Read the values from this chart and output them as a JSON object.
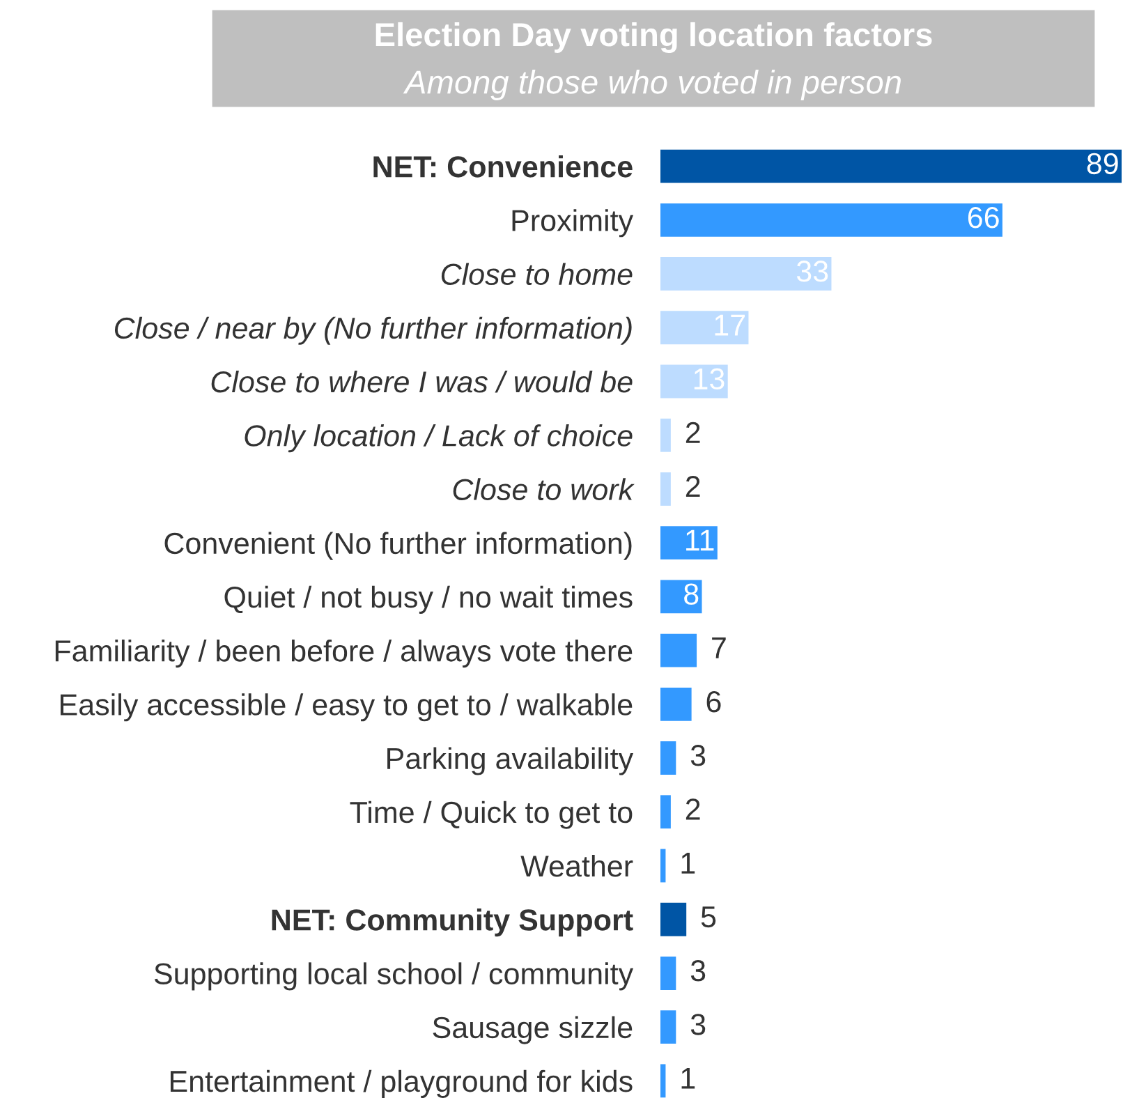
{
  "chart_data": {
    "type": "bar",
    "orientation": "horizontal",
    "title": "Election Day voting location factors",
    "subtitle": "Among those who voted in person",
    "categories": [
      "NET: Convenience",
      "Proximity",
      "Close to home",
      "Close / near by (No further information)",
      "Close to where I was / would be",
      "Only location / Lack of choice",
      "Close to work",
      "Convenient (No further information)",
      "Quiet / not busy / no wait times",
      "Familiarity / been before / always vote there",
      "Easily accessible / easy to get to / walkable",
      "Parking availability",
      "Time / Quick to get to",
      "Weather",
      "NET: Community Support",
      "Supporting local school / community",
      "Sausage sizzle",
      "Entertainment / playground for kids"
    ],
    "values": [
      89,
      66,
      33,
      17,
      13,
      2,
      2,
      11,
      8,
      7,
      6,
      3,
      2,
      1,
      5,
      3,
      3,
      1
    ],
    "colors": [
      "#0055a5",
      "#3399ff",
      "#bddcff",
      "#bddcff",
      "#bddcff",
      "#bddcff",
      "#bddcff",
      "#3399ff",
      "#3399ff",
      "#3399ff",
      "#3399ff",
      "#3399ff",
      "#3399ff",
      "#3399ff",
      "#0055a5",
      "#3399ff",
      "#3399ff",
      "#3399ff"
    ],
    "data_labels": true,
    "grid": false
  }
}
